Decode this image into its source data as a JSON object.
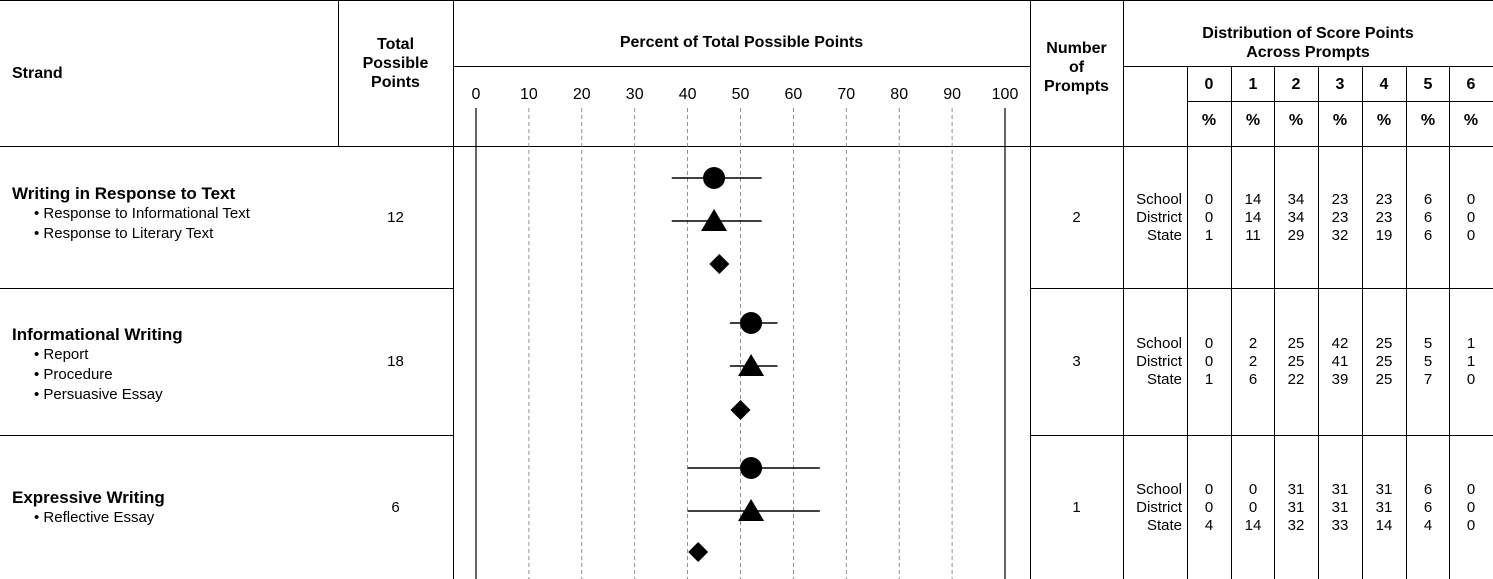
{
  "headers": {
    "strand": "Strand",
    "total_possible_points": [
      "Total",
      "Possible",
      "Points"
    ],
    "percent": "Percent of Total Possible Points",
    "number_of_prompts": [
      "Number",
      "of",
      "Prompts"
    ],
    "distribution": [
      "Distribution of Score Points",
      "Across Prompts"
    ],
    "pct_symbol": "%"
  },
  "strands": [
    {
      "title": "Writing in Response to Text",
      "subs": [
        "• Response to Informational Text",
        "• Response to Literary Text"
      ],
      "total_points": "12",
      "prompts": "2",
      "levels": [
        "School",
        "District",
        "State"
      ],
      "dist": [
        [
          "0",
          "14",
          "34",
          "23",
          "23",
          "6",
          "0"
        ],
        [
          "0",
          "14",
          "34",
          "23",
          "23",
          "6",
          "0"
        ],
        [
          "1",
          "11",
          "29",
          "32",
          "19",
          "6",
          "0"
        ]
      ]
    },
    {
      "title": "Informational Writing",
      "subs": [
        "• Report",
        "• Procedure",
        "• Persuasive Essay"
      ],
      "total_points": "18",
      "prompts": "3",
      "levels": [
        "School",
        "District",
        "State"
      ],
      "dist": [
        [
          "0",
          "2",
          "25",
          "42",
          "25",
          "5",
          "1"
        ],
        [
          "0",
          "2",
          "25",
          "41",
          "25",
          "5",
          "1"
        ],
        [
          "1",
          "6",
          "22",
          "39",
          "25",
          "7",
          "0"
        ]
      ]
    },
    {
      "title": "Expressive Writing",
      "subs": [
        "• Reflective Essay"
      ],
      "total_points": "6",
      "prompts": "1",
      "levels": [
        "School",
        "District",
        "State"
      ],
      "dist": [
        [
          "0",
          "0",
          "31",
          "31",
          "31",
          "6",
          "0"
        ],
        [
          "0",
          "0",
          "31",
          "31",
          "31",
          "6",
          "0"
        ],
        [
          "4",
          "14",
          "32",
          "33",
          "14",
          "4",
          "0"
        ]
      ]
    }
  ],
  "chart_data": {
    "type": "scatter",
    "title": "Percent of Total Possible Points",
    "xlim": [
      0,
      100
    ],
    "x_ticks": [
      0,
      10,
      20,
      30,
      40,
      50,
      60,
      70,
      80,
      90,
      100
    ],
    "grid": true,
    "categories": [
      "Writing in Response to Text",
      "Informational Writing",
      "Expressive Writing"
    ],
    "series": [
      {
        "marker": "circle",
        "values": [
          45,
          52,
          52
        ],
        "err_low": [
          37,
          48,
          40
        ],
        "err_high": [
          54,
          57,
          65
        ]
      },
      {
        "marker": "triangle",
        "values": [
          45,
          52,
          52
        ],
        "err_low": [
          37,
          48,
          40
        ],
        "err_high": [
          54,
          57,
          65
        ]
      },
      {
        "marker": "diamond",
        "values": [
          46,
          50,
          42
        ]
      }
    ]
  }
}
